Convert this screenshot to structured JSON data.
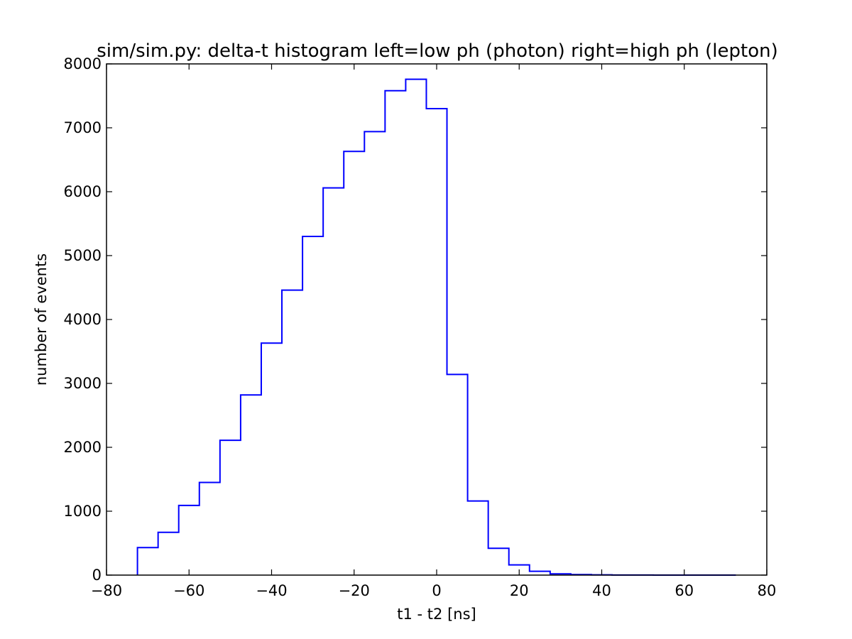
{
  "chart_data": {
    "type": "histogram",
    "title": "sim/sim.py: delta-t histogram left=low ph (photon) right=high ph (lepton)",
    "xlabel": "t1 - t2 [ns]",
    "ylabel": "number of events",
    "xlim": [
      -80,
      80
    ],
    "ylim": [
      0,
      8000
    ],
    "xticks": [
      -80,
      -60,
      -40,
      -20,
      0,
      20,
      40,
      60,
      80
    ],
    "yticks": [
      0,
      1000,
      2000,
      3000,
      4000,
      5000,
      6000,
      7000,
      8000
    ],
    "grid": false,
    "line_color": "#0000ff",
    "bin_edges": [
      -72.5,
      -67.5,
      -62.5,
      -57.5,
      -52.5,
      -47.5,
      -42.5,
      -37.5,
      -32.5,
      -27.5,
      -22.5,
      -17.5,
      -12.5,
      -7.5,
      -2.5,
      2.5,
      7.5,
      12.5,
      17.5,
      22.5,
      27.5,
      32.5,
      37.5,
      42.5,
      47.5,
      52.5,
      57.5,
      62.5,
      67.5,
      72.5
    ],
    "counts": [
      430,
      670,
      1090,
      1450,
      2110,
      2820,
      3630,
      4460,
      5300,
      6060,
      6630,
      6940,
      7580,
      7760,
      7300,
      3140,
      1160,
      420,
      160,
      60,
      20,
      8,
      4,
      2,
      1,
      0,
      0,
      0,
      0
    ]
  }
}
